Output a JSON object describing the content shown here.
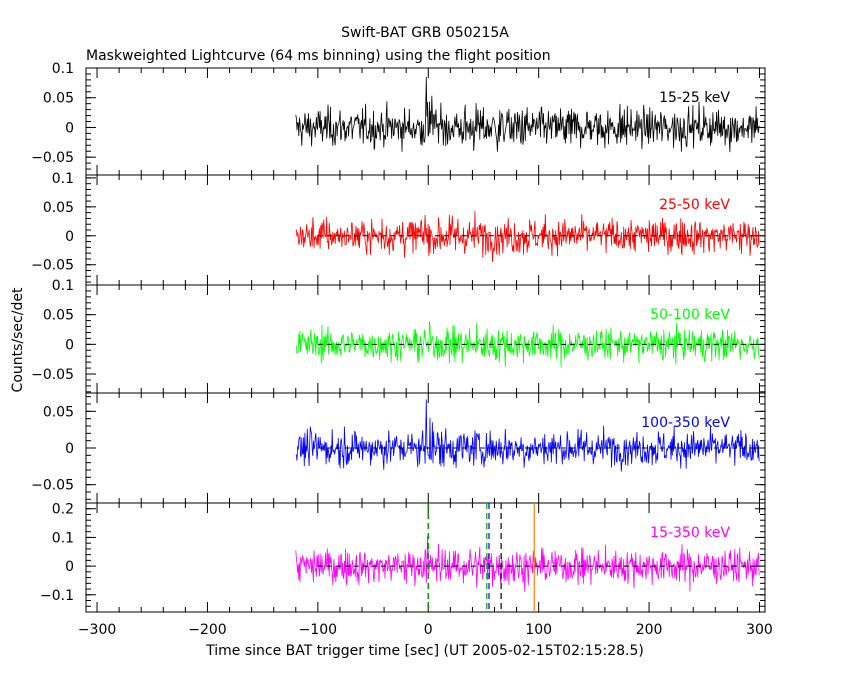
{
  "chart_data": {
    "type": "line",
    "title": "Swift-BAT GRB 050215A",
    "subtitle": "Maskweighted Lightcurve (64 ms binning) using the flight position",
    "xlabel": "Time since BAT trigger time [sec] (UT 2005-02-15T02:15:28.5)",
    "ylabel": "Counts/sec/det",
    "xlim": [
      -310,
      305
    ],
    "xticks": [
      -300,
      -200,
      -100,
      0,
      100,
      200,
      300
    ],
    "data_start": -120,
    "data_end": 300,
    "panels": [
      {
        "label": "15-25 keV",
        "color": "#000000",
        "ylim": [
          -0.08,
          0.1
        ],
        "yticks": [
          0.1,
          0.05,
          0,
          -0.05
        ],
        "ytick_labels": [
          "0.1",
          "0.05",
          "0",
          "−0.05"
        ],
        "noise": 0.027,
        "show_zero_line": false
      },
      {
        "label": "25-50 keV",
        "color": "#ff0000",
        "ylim": [
          -0.085,
          0.105
        ],
        "yticks": [
          0.1,
          0.05,
          0,
          -0.05
        ],
        "ytick_labels": [
          "0.1",
          "0.05",
          "0",
          "−0.05"
        ],
        "noise": 0.025,
        "show_zero_line": true
      },
      {
        "label": "50-100 keV",
        "color": "#00ff00",
        "ylim": [
          -0.082,
          0.1
        ],
        "yticks": [
          0.1,
          0.05,
          0,
          -0.05
        ],
        "ytick_labels": [
          "0.1",
          "0.05",
          "0",
          "−0.05"
        ],
        "noise": 0.022,
        "show_zero_line": true
      },
      {
        "label": "100-350 keV",
        "color": "#0000ff",
        "ylim": [
          -0.075,
          0.075
        ],
        "yticks": [
          0.05,
          0,
          -0.05
        ],
        "ytick_labels": [
          "0.05",
          "0",
          "−0.05"
        ],
        "noise": 0.02,
        "show_zero_line": true
      },
      {
        "label": "15-350 keV",
        "color": "#ff00ff",
        "ylim": [
          -0.16,
          0.22
        ],
        "yticks": [
          0.2,
          0.1,
          0,
          -0.1
        ],
        "ytick_labels": [
          "0.2",
          "0.1",
          "0",
          "−0.1"
        ],
        "noise": 0.05,
        "show_zero_line": true
      }
    ],
    "markers": [
      {
        "x": 0,
        "color": "#000000",
        "style": "dashed"
      },
      {
        "x": 0,
        "color": "#00aa00",
        "style": "dashed"
      },
      {
        "x": 53,
        "color": "#00aa00",
        "style": "dashed"
      },
      {
        "x": 55,
        "color": "#0000ff",
        "style": "dashed"
      },
      {
        "x": 66,
        "color": "#000000",
        "style": "dashed"
      },
      {
        "x": 96,
        "color": "#ff8000",
        "style": "solid"
      }
    ]
  }
}
